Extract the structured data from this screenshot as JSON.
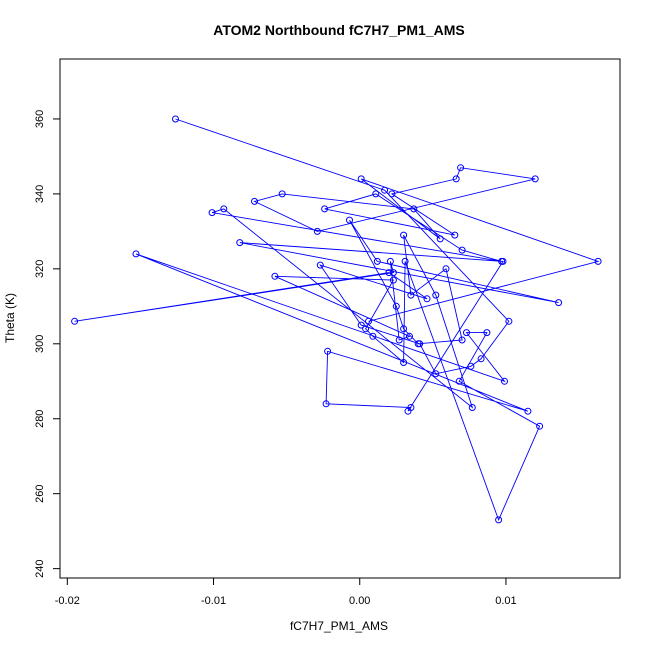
{
  "chart_data": {
    "type": "scatter",
    "title": "ATOM2 Northbound fC7H7_PM1_AMS",
    "xlabel": "fC7H7_PM1_AMS",
    "ylabel": "Theta (K)",
    "xlim": [
      -0.0205,
      0.0178
    ],
    "ylim": [
      237.5,
      376.0
    ],
    "xticks": [
      -0.02,
      -0.01,
      0.0,
      0.01
    ],
    "xtick_labels": [
      "-0.02",
      "-0.01",
      "0.00",
      "0.01"
    ],
    "yticks": [
      240,
      260,
      280,
      300,
      320,
      340,
      360
    ],
    "yticks_labels": [
      "240",
      "260",
      "280",
      "300",
      "320",
      "340",
      "360"
    ],
    "grid": false,
    "style": "points connected by lines",
    "color": "#0000ff",
    "series": [
      {
        "x": [
          -0.0126,
          0.0017,
          0.0102,
          0.0083,
          0.0076,
          0.0052,
          0.0041,
          0.0001,
          -0.0027,
          0.0046,
          0.002,
          -0.0195,
          0.0023,
          0.0021,
          0.0027,
          0.0034,
          -0.0058,
          0.0023,
          0.0004,
          0.0009,
          0.003,
          0.0031,
          0.0095,
          0.0123,
          0.0068,
          0.0087,
          0.0073,
          0.0099,
          -0.0153,
          0.0115,
          -0.0022,
          -0.0023,
          0.0035,
          0.0033,
          0.0098,
          -0.0082,
          0.0136,
          0.0012,
          -0.0007,
          0.0025,
          0.003,
          0.004,
          0.007,
          0.0059,
          0.0035,
          0.003,
          0.0052,
          0.0077,
          -0.0093,
          -0.0101,
          0.0097,
          0.007,
          0.0011,
          -0.0024,
          0.0065,
          0.0022,
          0.0066,
          0.0069,
          0.012,
          -0.0029,
          -0.0072,
          -0.0053,
          0.0037,
          0.0055,
          0.0001,
          0.0163,
          0.0006
        ],
        "y": [
          360,
          341,
          306,
          296,
          294,
          292,
          300,
          305,
          321,
          312,
          319,
          306,
          319,
          322,
          301,
          302,
          318,
          317,
          304,
          302,
          295,
          322,
          253,
          278,
          290,
          303,
          303,
          290,
          324,
          282,
          298,
          284,
          283,
          282,
          322,
          327,
          311,
          322,
          333,
          310,
          304,
          300,
          301,
          320,
          313,
          329,
          313,
          283,
          336,
          335,
          322,
          325,
          340,
          336,
          329,
          340,
          344,
          347,
          344,
          330,
          338,
          340,
          336,
          328,
          344,
          322,
          306
        ]
      }
    ]
  }
}
